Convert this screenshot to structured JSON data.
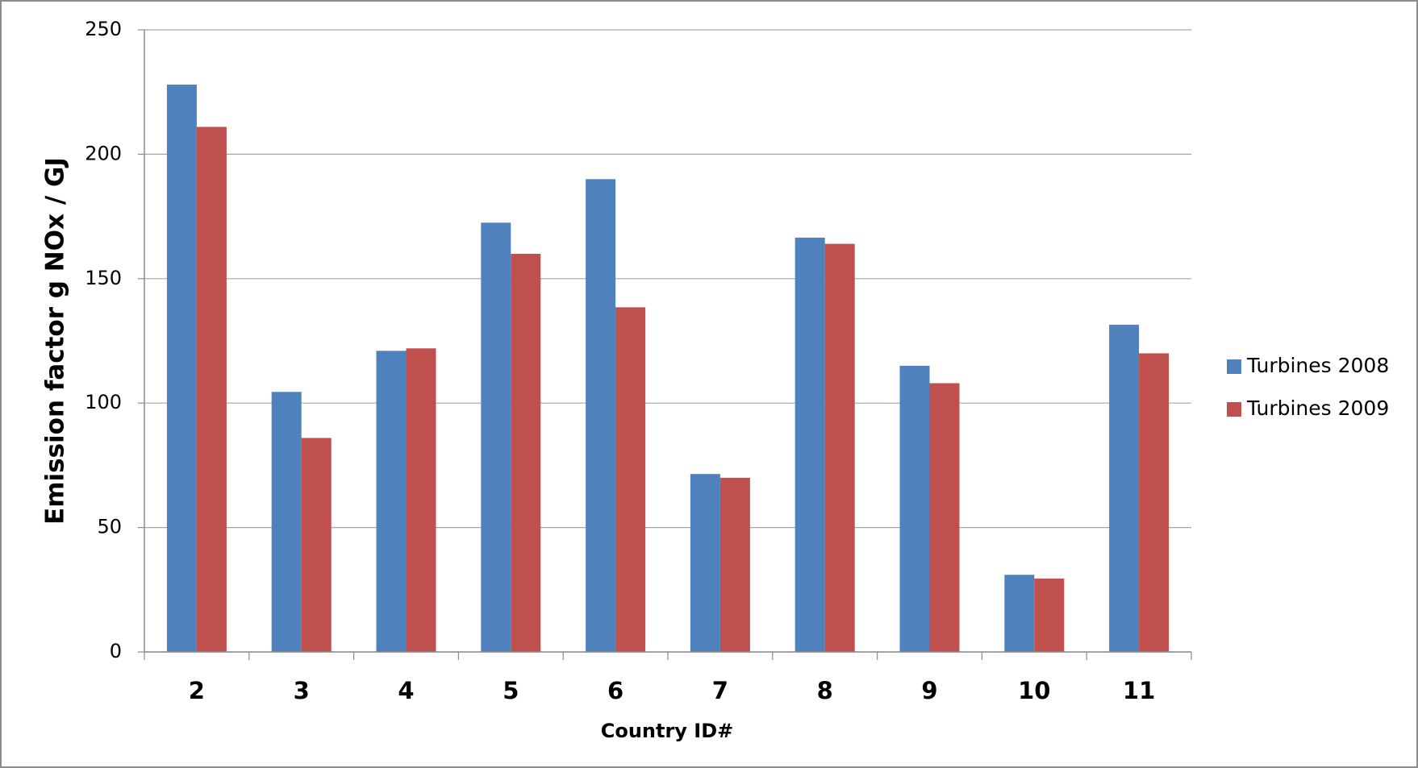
{
  "chart_data": {
    "type": "bar",
    "x_label": "Country ID#",
    "y_label": "Emission factor g NOx / GJ",
    "categories": [
      "2",
      "3",
      "4",
      "5",
      "6",
      "7",
      "8",
      "9",
      "10",
      "11"
    ],
    "series": [
      {
        "name": "Turbines 2008",
        "color": "#4f81bd",
        "values": [
          228,
          104.5,
          121,
          172.5,
          190,
          71.5,
          166.5,
          115,
          31,
          131.5
        ]
      },
      {
        "name": "Turbines 2009",
        "color": "#c0504d",
        "values": [
          211,
          86,
          122,
          160,
          138.5,
          70,
          164,
          108,
          29.5,
          120
        ]
      }
    ],
    "ylim": [
      0,
      250
    ],
    "yticks": [
      0,
      50,
      100,
      150,
      200,
      250
    ],
    "grid": true,
    "legend": "right"
  }
}
